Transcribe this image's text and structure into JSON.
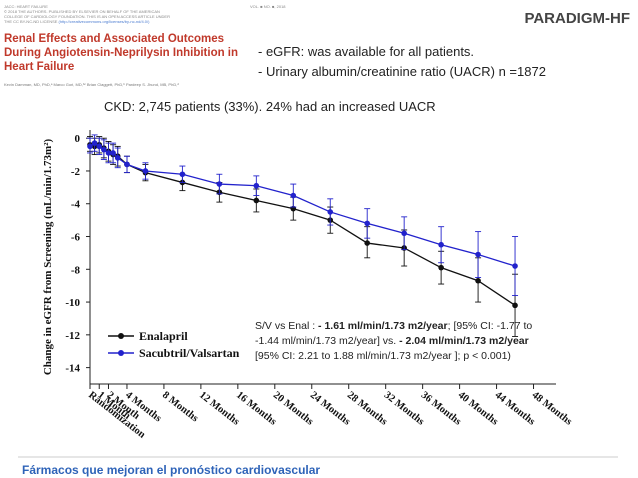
{
  "journal_header": {
    "line1": "JACC: HEART FAILURE",
    "line2": "© 2018 THE AUTHORS. PUBLISHED BY ELSEVIER ON BEHALF OF THE AMERICAN",
    "line3": "COLLEGE OF CARDIOLOGY FOUNDATION. THIS IS AN OPEN ACCESS ARTICLE UNDER",
    "line4": "THE CC BY-NC-ND LICENSE",
    "link": "(http://creativecommons.org/licenses/by-nc-nd/4.0/)",
    "issue": "VOL. ■ NO. ■, 2018"
  },
  "paper": {
    "title": "Renal Effects and Associated Outcomes During Angiotensin-Neprilysin Inhibition in Heart Failure",
    "authors": "Kevin Damman, MD, PhD,ᵃ Marco Gori, MD,ᵇᶜ Brian Claggett, PhD,ᵇ Pardeep S. Jhund, MB, PhD,ᵈ"
  },
  "brand": "PARADIGM-HF",
  "bullets": [
    "- eGFR: was available for all patients.",
    "- Urinary albumin/creatinine ratio (UACR) n =1872"
  ],
  "ckd_note": "CKD: 2,745 patients (33%). 24% had an increased UACR",
  "stat_box": {
    "p1": "S/V vs Enal : ",
    "b1": "- 1.61 ml/min/1.73 m2/year",
    "p2": "; [95% CI: -1.77 to -1.44 ml/min/1.73 m2/year] vs. ",
    "b2": "- 2.04 ml/min/1.73 m2/year",
    "p3": " [95% CI: 2.21 to 1.88 ml/min/1.73 m2/year ]; p < 0.001)"
  },
  "footer": "Fármacos que mejoran el pronóstico cardiovascular",
  "chart_data": {
    "type": "line",
    "title": "",
    "xlabel": "",
    "ylabel": "Change in eGFR from Screening (mL/min/1.73m²)",
    "ylim": [
      -15,
      0.5
    ],
    "yticks": [
      0,
      -2,
      -4,
      -6,
      -8,
      -10,
      -12,
      -14
    ],
    "x_month_range": [
      -2,
      48
    ],
    "x_tick_labels": [
      {
        "month": -2,
        "label": "Randomization"
      },
      {
        "month": -1,
        "label": "1 Month"
      },
      {
        "month": 0,
        "label": "2 Month"
      },
      {
        "month": 2,
        "label": "4 Months"
      },
      {
        "month": 6,
        "label": "8 Months"
      },
      {
        "month": 10,
        "label": "12 Months"
      },
      {
        "month": 14,
        "label": "16 Months"
      },
      {
        "month": 18,
        "label": "20 Months"
      },
      {
        "month": 22,
        "label": "24 Months"
      },
      {
        "month": 26,
        "label": "28 Months"
      },
      {
        "month": 30,
        "label": "32 Months"
      },
      {
        "month": 34,
        "label": "36 Months"
      },
      {
        "month": 38,
        "label": "40 Months"
      },
      {
        "month": 42,
        "label": "44 Months"
      },
      {
        "month": 46,
        "label": "48 Months"
      }
    ],
    "legend_position": "bottom-left",
    "series": [
      {
        "name": "Enalapril",
        "color": "#111111",
        "marker": "circle",
        "points": [
          {
            "x": -2,
            "y": -0.4,
            "lo": -0.8,
            "hi": 0.1
          },
          {
            "x": -1.5,
            "y": -0.5,
            "lo": -1.0,
            "hi": 0.0
          },
          {
            "x": -1,
            "y": -0.4,
            "lo": -0.9,
            "hi": 0.1
          },
          {
            "x": -0.5,
            "y": -0.6,
            "lo": -1.2,
            "hi": 0.0
          },
          {
            "x": 0,
            "y": -0.8,
            "lo": -1.4,
            "hi": -0.2
          },
          {
            "x": 0.5,
            "y": -1.0,
            "lo": -1.6,
            "hi": -0.4
          },
          {
            "x": 1,
            "y": -1.1,
            "lo": -1.7,
            "hi": -0.5
          },
          {
            "x": 2,
            "y": -1.6,
            "lo": -2.1,
            "hi": -1.1
          },
          {
            "x": 4,
            "y": -2.1,
            "lo": -2.6,
            "hi": -1.6
          },
          {
            "x": 8,
            "y": -2.7,
            "lo": -3.2,
            "hi": -2.2
          },
          {
            "x": 12,
            "y": -3.3,
            "lo": -3.9,
            "hi": -2.7
          },
          {
            "x": 16,
            "y": -3.8,
            "lo": -4.5,
            "hi": -3.1
          },
          {
            "x": 20,
            "y": -4.3,
            "lo": -5.0,
            "hi": -3.6
          },
          {
            "x": 24,
            "y": -5.0,
            "lo": -5.8,
            "hi": -4.2
          },
          {
            "x": 28,
            "y": -6.4,
            "lo": -7.3,
            "hi": -5.4
          },
          {
            "x": 32,
            "y": -6.7,
            "lo": -7.8,
            "hi": -5.6
          },
          {
            "x": 36,
            "y": -7.9,
            "lo": -8.9,
            "hi": -6.9
          },
          {
            "x": 40,
            "y": -8.7,
            "lo": -10.0,
            "hi": -7.3
          },
          {
            "x": 44,
            "y": -10.2,
            "lo": -12.1,
            "hi": -8.3
          }
        ]
      },
      {
        "name": "Sacubtril/Valsartan",
        "color": "#2222cc",
        "marker": "circle",
        "points": [
          {
            "x": -2,
            "y": -0.5,
            "lo": -0.9,
            "hi": 0.0
          },
          {
            "x": -1.5,
            "y": -0.3,
            "lo": -0.8,
            "hi": 0.2
          },
          {
            "x": -1,
            "y": -0.5,
            "lo": -1.0,
            "hi": 0.0
          },
          {
            "x": -0.5,
            "y": -0.7,
            "lo": -1.3,
            "hi": -0.1
          },
          {
            "x": 0,
            "y": -0.9,
            "lo": -1.5,
            "hi": -0.3
          },
          {
            "x": 0.5,
            "y": -0.9,
            "lo": -1.5,
            "hi": -0.3
          },
          {
            "x": 1,
            "y": -1.2,
            "lo": -1.8,
            "hi": -0.6
          },
          {
            "x": 2,
            "y": -1.6,
            "lo": -2.1,
            "hi": -1.1
          },
          {
            "x": 4,
            "y": -2.0,
            "lo": -2.5,
            "hi": -1.5
          },
          {
            "x": 8,
            "y": -2.2,
            "lo": -2.7,
            "hi": -1.7
          },
          {
            "x": 12,
            "y": -2.8,
            "lo": -3.4,
            "hi": -2.2
          },
          {
            "x": 16,
            "y": -2.9,
            "lo": -3.5,
            "hi": -2.3
          },
          {
            "x": 20,
            "y": -3.5,
            "lo": -4.2,
            "hi": -2.8
          },
          {
            "x": 24,
            "y": -4.5,
            "lo": -5.3,
            "hi": -3.7
          },
          {
            "x": 28,
            "y": -5.2,
            "lo": -6.1,
            "hi": -4.3
          },
          {
            "x": 32,
            "y": -5.8,
            "lo": -6.8,
            "hi": -4.8
          },
          {
            "x": 36,
            "y": -6.5,
            "lo": -7.6,
            "hi": -5.4
          },
          {
            "x": 40,
            "y": -7.1,
            "lo": -8.5,
            "hi": -5.7
          },
          {
            "x": 44,
            "y": -7.8,
            "lo": -9.6,
            "hi": -6.0
          }
        ]
      }
    ]
  }
}
